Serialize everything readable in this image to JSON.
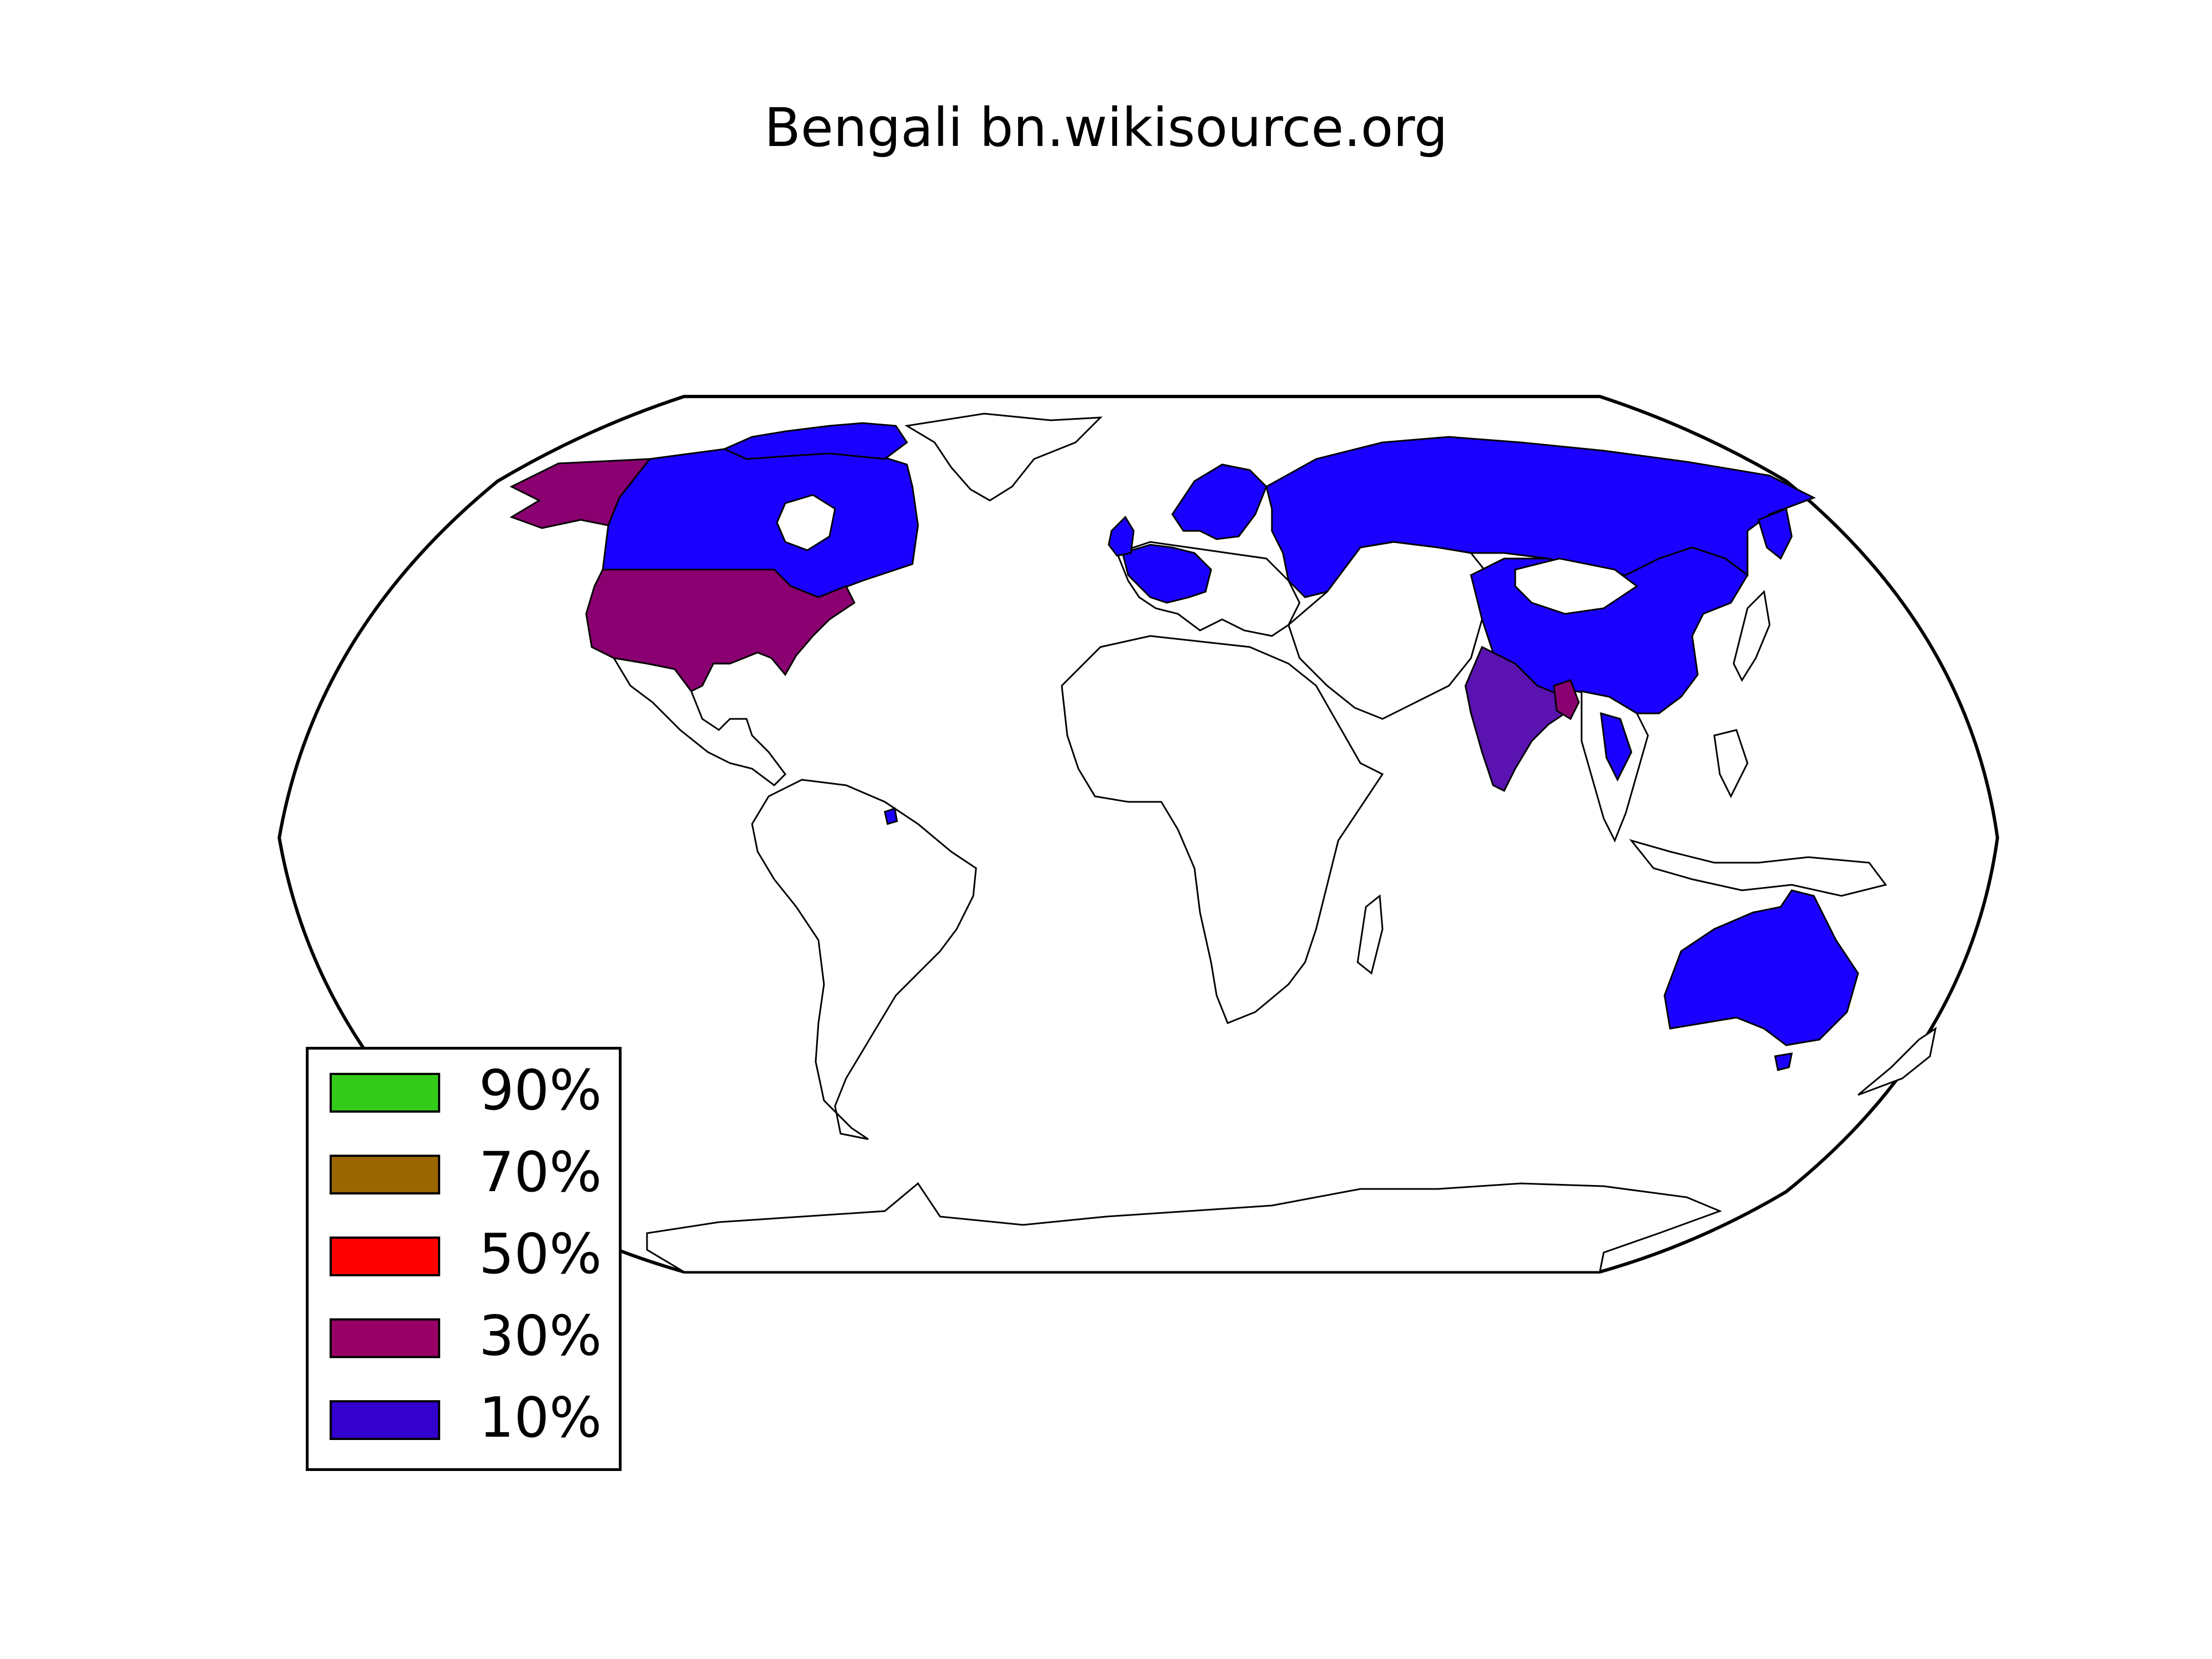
{
  "title": "Bengali bn.wikisource.org",
  "legend": {
    "items": [
      {
        "label": "90%",
        "color": "#33cc1a"
      },
      {
        "label": "70%",
        "color": "#996600"
      },
      {
        "label": "50%",
        "color": "#ff0000"
      },
      {
        "label": "30%",
        "color": "#990066"
      },
      {
        "label": "10%",
        "color": "#3300cc"
      }
    ]
  },
  "colors": {
    "ten_percent": "#1a00ff",
    "thirty_percent": "#8b0070",
    "india": "#5a12b0",
    "land": "#ffffff",
    "border": "#000000"
  }
}
